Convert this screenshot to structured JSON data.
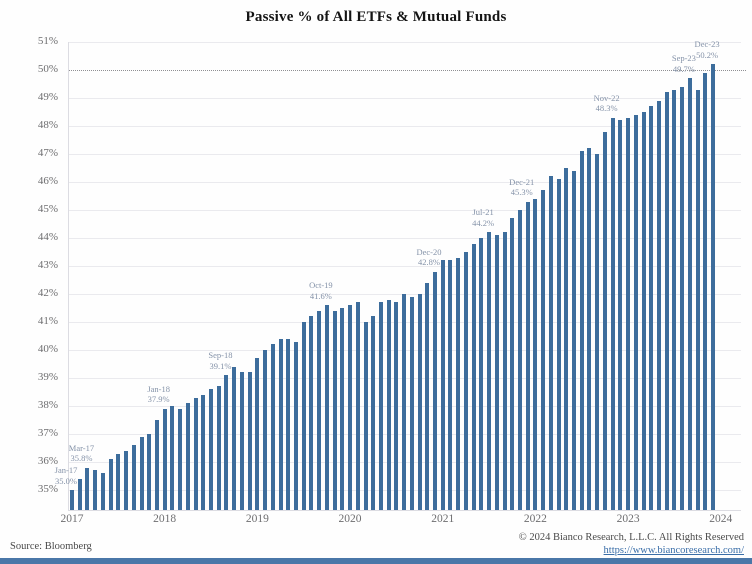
{
  "chart_data": {
    "type": "bar",
    "title": "Passive % of All ETFs & Mutual Funds",
    "xlabel": "",
    "ylabel": "",
    "ylim": [
      34.4,
      51.6
    ],
    "y_ticks": [
      "35%",
      "36%",
      "37%",
      "38%",
      "39%",
      "40%",
      "41%",
      "42%",
      "43%",
      "44%",
      "45%",
      "46%",
      "47%",
      "48%",
      "49%",
      "50%",
      "51%"
    ],
    "reference_line": {
      "value": 50,
      "style": "dotted"
    },
    "grid": "horizontal",
    "legend_position": "none",
    "x_frequency": "monthly",
    "year_labels": [
      "2017",
      "2018",
      "2019",
      "2020",
      "2021",
      "2022",
      "2023",
      "2024"
    ],
    "categories": [
      "Jan-17",
      "Feb-17",
      "Mar-17",
      "Apr-17",
      "May-17",
      "Jun-17",
      "Jul-17",
      "Aug-17",
      "Sep-17",
      "Oct-17",
      "Nov-17",
      "Dec-17",
      "Jan-18",
      "Feb-18",
      "Mar-18",
      "Apr-18",
      "May-18",
      "Jun-18",
      "Jul-18",
      "Aug-18",
      "Sep-18",
      "Oct-18",
      "Nov-18",
      "Dec-18",
      "Jan-19",
      "Feb-19",
      "Mar-19",
      "Apr-19",
      "May-19",
      "Jun-19",
      "Jul-19",
      "Aug-19",
      "Sep-19",
      "Oct-19",
      "Nov-19",
      "Dec-19",
      "Jan-20",
      "Feb-20",
      "Mar-20",
      "Apr-20",
      "May-20",
      "Jun-20",
      "Jul-20",
      "Aug-20",
      "Sep-20",
      "Oct-20",
      "Nov-20",
      "Dec-20",
      "Jan-21",
      "Feb-21",
      "Mar-21",
      "Apr-21",
      "May-21",
      "Jun-21",
      "Jul-21",
      "Aug-21",
      "Sep-21",
      "Oct-21",
      "Nov-21",
      "Dec-21",
      "Jan-22",
      "Feb-22",
      "Mar-22",
      "Apr-22",
      "May-22",
      "Jun-22",
      "Jul-22",
      "Aug-22",
      "Sep-22",
      "Oct-22",
      "Nov-22",
      "Dec-22",
      "Jan-23",
      "Feb-23",
      "Mar-23",
      "Apr-23",
      "May-23",
      "Jun-23",
      "Jul-23",
      "Aug-23",
      "Sep-23",
      "Oct-23",
      "Nov-23",
      "Dec-23"
    ],
    "values": [
      35.0,
      35.4,
      35.8,
      35.7,
      35.6,
      36.1,
      36.3,
      36.4,
      36.6,
      36.9,
      37.0,
      37.5,
      37.9,
      38.0,
      37.9,
      38.1,
      38.3,
      38.4,
      38.6,
      38.7,
      39.1,
      39.4,
      39.2,
      39.2,
      39.7,
      40.0,
      40.2,
      40.4,
      40.4,
      40.3,
      41.0,
      41.2,
      41.4,
      41.6,
      41.4,
      41.5,
      41.6,
      41.7,
      41.0,
      41.2,
      41.7,
      41.8,
      41.7,
      42.0,
      41.9,
      42.0,
      42.4,
      42.8,
      43.2,
      43.2,
      43.3,
      43.5,
      43.8,
      44.0,
      44.2,
      44.1,
      44.2,
      44.7,
      45.0,
      45.3,
      45.4,
      45.7,
      46.2,
      46.1,
      46.5,
      46.4,
      47.1,
      47.2,
      47.0,
      47.8,
      48.3,
      48.2,
      48.3,
      48.4,
      48.5,
      48.7,
      48.9,
      49.2,
      49.3,
      49.4,
      49.7,
      49.3,
      49.9,
      50.2
    ],
    "annotations": [
      {
        "index": 0,
        "label": "Jan-17",
        "value_text": "35.0%"
      },
      {
        "index": 2,
        "label": "Mar-17",
        "value_text": "35.8%"
      },
      {
        "index": 12,
        "label": "Jan-18",
        "value_text": "37.9%"
      },
      {
        "index": 20,
        "label": "Sep-18",
        "value_text": "39.1%"
      },
      {
        "index": 33,
        "label": "Oct-19",
        "value_text": "41.6%"
      },
      {
        "index": 47,
        "label": "Dec-20",
        "value_text": "42.8%"
      },
      {
        "index": 54,
        "label": "Jul-21",
        "value_text": "44.2%"
      },
      {
        "index": 59,
        "label": "Dec-21",
        "value_text": "45.3%"
      },
      {
        "index": 70,
        "label": "Nov-22",
        "value_text": "48.3%"
      },
      {
        "index": 80,
        "label": "Sep-23",
        "value_text": "49.7%"
      },
      {
        "index": 83,
        "label": "Dec-23",
        "value_text": "50.2%"
      }
    ]
  },
  "footer": {
    "source_text": "Source: Bloomberg",
    "copyright_text": "© 2024 Bianco Research, L.L.C. All Rights Reserved",
    "link_text": "https://www.biancoresearch.com/"
  },
  "colors": {
    "bar": "#3d6d9c",
    "grid": "#eaeaee",
    "dotted_line": "#8f8f93",
    "axis_label": "#6e6e70",
    "annotation": "#8492a8",
    "title": "#141414",
    "footer_text": "#4a4a4a",
    "link": "#3a6ea8",
    "bottom_strip": "#4a77a8",
    "background": "#fefefe"
  }
}
